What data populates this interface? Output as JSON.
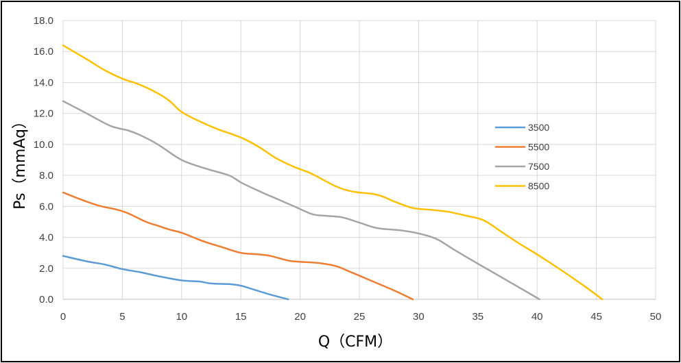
{
  "chart_data": {
    "type": "line",
    "title": "",
    "xlabel": "Q（CFM）",
    "ylabel": "Ps（mmAq）",
    "xlim": [
      0,
      50
    ],
    "ylim": [
      0,
      18
    ],
    "x_ticks": [
      0,
      5,
      10,
      15,
      20,
      25,
      30,
      35,
      40,
      45,
      50
    ],
    "y_ticks": [
      0,
      2,
      4,
      6,
      8,
      10,
      12,
      14,
      16,
      18
    ],
    "x_tick_labels": [
      "0",
      "5",
      "10",
      "15",
      "20",
      "25",
      "30",
      "35",
      "40",
      "45",
      "50"
    ],
    "y_tick_labels": [
      "0.0",
      "2.0",
      "4.0",
      "6.0",
      "8.0",
      "10.0",
      "12.0",
      "14.0",
      "16.0",
      "18.0"
    ],
    "grid": true,
    "legend_position": "right",
    "series": [
      {
        "name": "3500",
        "color": "#5B9BD5",
        "points": [
          [
            0,
            2.8
          ],
          [
            2,
            2.45
          ],
          [
            3.5,
            2.25
          ],
          [
            5,
            1.95
          ],
          [
            6.5,
            1.75
          ],
          [
            8,
            1.5
          ],
          [
            10,
            1.22
          ],
          [
            11.5,
            1.15
          ],
          [
            12.5,
            1.02
          ],
          [
            14,
            0.98
          ],
          [
            15,
            0.88
          ],
          [
            16,
            0.65
          ],
          [
            17.5,
            0.3
          ],
          [
            19,
            0
          ]
        ]
      },
      {
        "name": "5500",
        "color": "#ED7D31",
        "points": [
          [
            0,
            6.9
          ],
          [
            1.5,
            6.45
          ],
          [
            3,
            6.05
          ],
          [
            4.5,
            5.8
          ],
          [
            5.5,
            5.55
          ],
          [
            7,
            5.0
          ],
          [
            8,
            4.75
          ],
          [
            9,
            4.5
          ],
          [
            10,
            4.3
          ],
          [
            11,
            4.0
          ],
          [
            12,
            3.7
          ],
          [
            13.5,
            3.35
          ],
          [
            15,
            3.0
          ],
          [
            16.5,
            2.9
          ],
          [
            17.5,
            2.8
          ],
          [
            19,
            2.5
          ],
          [
            20,
            2.42
          ],
          [
            21.5,
            2.35
          ],
          [
            23,
            2.15
          ],
          [
            24,
            1.85
          ],
          [
            26,
            1.2
          ],
          [
            28,
            0.55
          ],
          [
            29.5,
            0
          ]
        ]
      },
      {
        "name": "7500",
        "color": "#A5A5A5",
        "points": [
          [
            0,
            12.8
          ],
          [
            2,
            12.0
          ],
          [
            4,
            11.2
          ],
          [
            5.5,
            10.9
          ],
          [
            6.5,
            10.6
          ],
          [
            8,
            10.0
          ],
          [
            10,
            9.0
          ],
          [
            12,
            8.45
          ],
          [
            14,
            8.0
          ],
          [
            15,
            7.55
          ],
          [
            16.5,
            7.0
          ],
          [
            18,
            6.5
          ],
          [
            19.5,
            6.0
          ],
          [
            21,
            5.5
          ],
          [
            22,
            5.4
          ],
          [
            23.5,
            5.3
          ],
          [
            25,
            4.95
          ],
          [
            26.5,
            4.6
          ],
          [
            28.5,
            4.45
          ],
          [
            30,
            4.25
          ],
          [
            31.5,
            3.9
          ],
          [
            33,
            3.2
          ],
          [
            35,
            2.3
          ],
          [
            37.5,
            1.2
          ],
          [
            40.2,
            0
          ]
        ]
      },
      {
        "name": "8500",
        "color": "#FFC000",
        "points": [
          [
            0,
            16.4
          ],
          [
            2,
            15.5
          ],
          [
            3.5,
            14.8
          ],
          [
            5,
            14.25
          ],
          [
            6.5,
            13.85
          ],
          [
            8,
            13.3
          ],
          [
            9,
            12.8
          ],
          [
            10,
            12.1
          ],
          [
            11.5,
            11.5
          ],
          [
            13,
            11.0
          ],
          [
            15,
            10.45
          ],
          [
            16.5,
            9.85
          ],
          [
            18,
            9.1
          ],
          [
            19.5,
            8.55
          ],
          [
            21,
            8.1
          ],
          [
            23,
            7.3
          ],
          [
            24.5,
            6.95
          ],
          [
            26.5,
            6.75
          ],
          [
            28,
            6.3
          ],
          [
            29.5,
            5.9
          ],
          [
            31,
            5.78
          ],
          [
            32.5,
            5.65
          ],
          [
            34,
            5.4
          ],
          [
            35.5,
            5.1
          ],
          [
            37,
            4.35
          ],
          [
            38.5,
            3.6
          ],
          [
            40,
            2.9
          ],
          [
            42,
            1.9
          ],
          [
            44,
            0.85
          ],
          [
            45.5,
            0
          ]
        ]
      }
    ]
  }
}
